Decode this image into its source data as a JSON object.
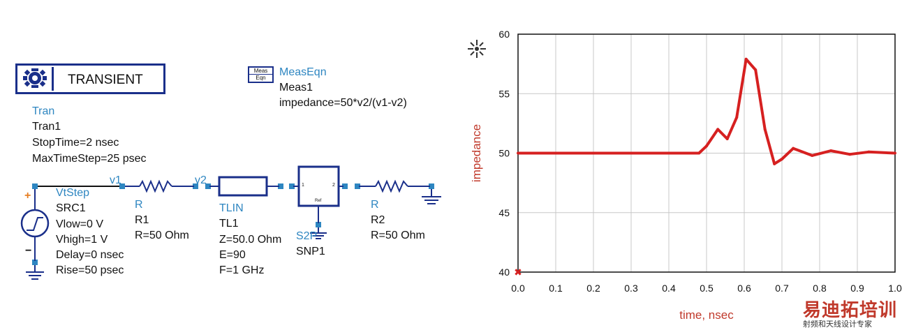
{
  "schematic": {
    "transient_title": "TRANSIENT",
    "tran": {
      "type": "Tran",
      "name": "Tran1",
      "stop_time": "StopTime=2 nsec",
      "max_step": "MaxTimeStep=25 psec"
    },
    "meas": {
      "icon_line1": "Meas",
      "icon_line2": "Eqn",
      "type": "MeasEqn",
      "name": "Meas1",
      "equation": "impedance=50*v2/(v1-v2)"
    },
    "source": {
      "type": "VtStep",
      "name": "SRC1",
      "vlow": "Vlow=0 V",
      "vhigh": "Vhigh=1 V",
      "delay": "Delay=0 nsec",
      "rise": "Rise=50 psec",
      "plus": "+",
      "minus": "−"
    },
    "node_v1": "v1",
    "node_v2": "v2",
    "r1": {
      "type": "R",
      "name": "R1",
      "value": "R=50 Ohm"
    },
    "tlin": {
      "type": "TLIN",
      "name": "TL1",
      "z": "Z=50.0 Ohm",
      "e": "E=90",
      "f": "F=1 GHz"
    },
    "snp": {
      "type": "S2P",
      "name": "SNP1",
      "port1": "1",
      "port2": "2",
      "ref": "Ref"
    },
    "r2": {
      "type": "R",
      "name": "R2",
      "value": "R=50 Ohm"
    }
  },
  "chart_data": {
    "type": "line",
    "xlabel": "time, nsec",
    "ylabel": "impedance",
    "xlim": [
      0.0,
      1.0
    ],
    "ylim": [
      40,
      60
    ],
    "x_ticks": [
      "0.0",
      "0.1",
      "0.2",
      "0.3",
      "0.4",
      "0.5",
      "0.6",
      "0.7",
      "0.8",
      "0.9",
      "1.0"
    ],
    "y_ticks": [
      "40",
      "45",
      "50",
      "55",
      "60"
    ],
    "grid": true,
    "line_color": "#d62020",
    "series": [
      {
        "x": [
          0.0,
          0.1,
          0.2,
          0.3,
          0.4,
          0.48,
          0.5,
          0.53,
          0.555,
          0.58,
          0.605,
          0.63,
          0.655,
          0.68,
          0.7,
          0.73,
          0.78,
          0.83,
          0.88,
          0.93,
          1.0
        ],
        "y": [
          50,
          50,
          50,
          50,
          50,
          50,
          50.6,
          52.0,
          51.2,
          53.0,
          57.9,
          57.0,
          52.0,
          49.1,
          49.5,
          50.4,
          49.8,
          50.2,
          49.9,
          50.1,
          50.0
        ]
      }
    ],
    "marker_symbol": "✖"
  },
  "watermark": {
    "logo_text": "易迪拓培训",
    "subtitle": "射频和天线设计专家",
    "logo_colors": [
      "#c0392b",
      "#e67e22",
      "#2e86c1"
    ]
  }
}
